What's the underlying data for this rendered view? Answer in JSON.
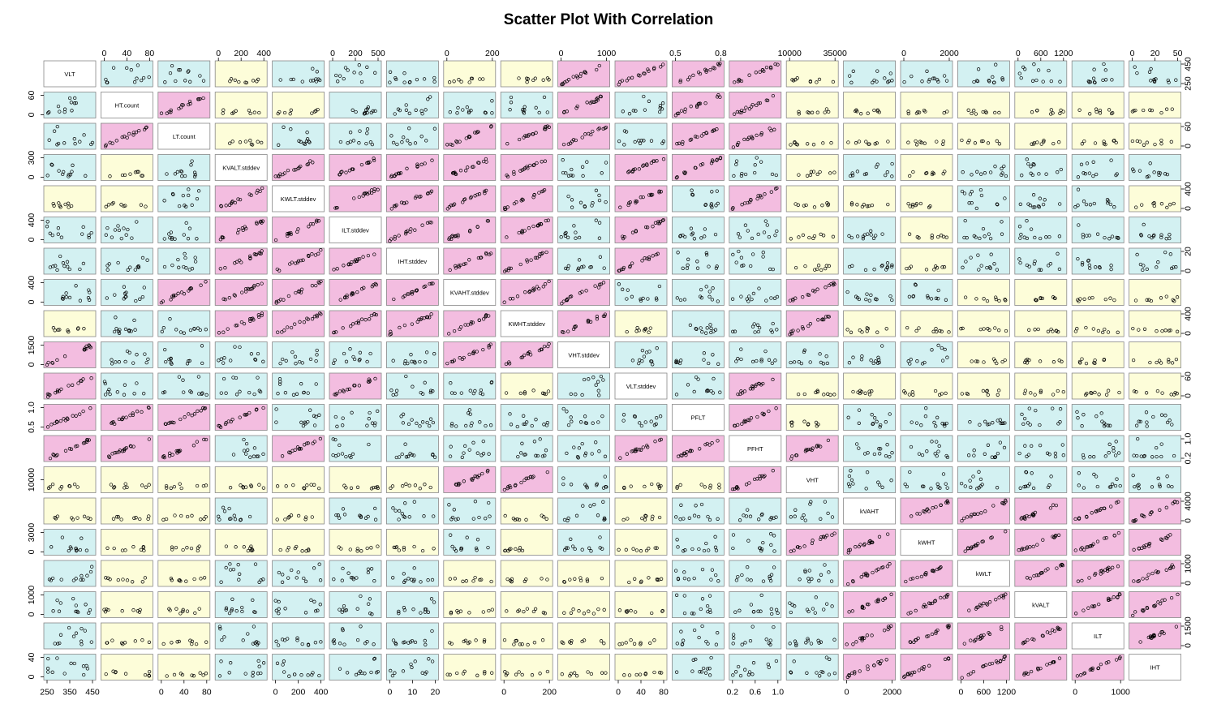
{
  "chart_data": {
    "type": "scatter",
    "title": "Scatter Plot With Correlation",
    "variables": [
      "VLT",
      "HT.count",
      "LT.count",
      "KVALT.stddev",
      "KWLT.stddev",
      "ILT.stddev",
      "IHT.stddev",
      "KVAHT.stddev",
      "KWHT.stddev",
      "VHT.stddev",
      "VLT.stddev",
      "PFLT",
      "PFHT",
      "VHT",
      "kVAHT",
      "kWHT",
      "kWLT",
      "kVALT",
      "ILT",
      "IHT"
    ],
    "panel_colors": {
      "high": "#f3bde0",
      "medium": "#d3f1f2",
      "low": "#fdfdd9"
    },
    "correlation_levels": [
      [
        0,
        1,
        1,
        2,
        1,
        1,
        1,
        2,
        2,
        0,
        0,
        0,
        0,
        2,
        1,
        1,
        1,
        1,
        1,
        1
      ],
      [
        1,
        0,
        0,
        2,
        2,
        1,
        1,
        1,
        1,
        0,
        1,
        0,
        0,
        2,
        2,
        2,
        2,
        2,
        2,
        2
      ],
      [
        1,
        0,
        0,
        2,
        1,
        1,
        1,
        0,
        0,
        0,
        1,
        0,
        0,
        2,
        2,
        2,
        2,
        2,
        2,
        2
      ],
      [
        1,
        2,
        1,
        0,
        0,
        0,
        0,
        0,
        0,
        1,
        0,
        0,
        1,
        2,
        1,
        2,
        1,
        1,
        1,
        1
      ],
      [
        2,
        2,
        1,
        0,
        0,
        0,
        0,
        0,
        0,
        1,
        0,
        1,
        0,
        2,
        2,
        2,
        1,
        1,
        1,
        2
      ],
      [
        1,
        1,
        1,
        0,
        0,
        0,
        0,
        0,
        0,
        1,
        0,
        1,
        1,
        2,
        1,
        2,
        1,
        1,
        1,
        1
      ],
      [
        1,
        1,
        1,
        0,
        0,
        0,
        0,
        0,
        0,
        1,
        0,
        1,
        1,
        2,
        1,
        2,
        1,
        1,
        1,
        1
      ],
      [
        1,
        1,
        0,
        0,
        0,
        0,
        0,
        0,
        0,
        0,
        1,
        1,
        1,
        0,
        1,
        1,
        2,
        2,
        2,
        2
      ],
      [
        2,
        1,
        1,
        0,
        0,
        0,
        0,
        0,
        0,
        0,
        2,
        1,
        1,
        0,
        2,
        2,
        2,
        2,
        2,
        2
      ],
      [
        0,
        1,
        1,
        1,
        1,
        1,
        1,
        0,
        0,
        0,
        1,
        1,
        1,
        1,
        1,
        1,
        2,
        2,
        2,
        2
      ],
      [
        0,
        1,
        1,
        1,
        1,
        0,
        1,
        1,
        2,
        1,
        0,
        1,
        0,
        2,
        2,
        2,
        2,
        2,
        2,
        2
      ],
      [
        0,
        0,
        0,
        0,
        1,
        1,
        1,
        1,
        1,
        1,
        1,
        0,
        0,
        2,
        1,
        1,
        1,
        1,
        1,
        1
      ],
      [
        0,
        0,
        0,
        1,
        0,
        1,
        1,
        1,
        1,
        1,
        0,
        0,
        0,
        0,
        1,
        1,
        1,
        1,
        1,
        1
      ],
      [
        2,
        2,
        2,
        2,
        2,
        2,
        2,
        0,
        0,
        1,
        2,
        2,
        0,
        0,
        1,
        1,
        1,
        1,
        1,
        1
      ],
      [
        2,
        2,
        2,
        1,
        2,
        1,
        1,
        1,
        2,
        1,
        2,
        1,
        1,
        1,
        0,
        0,
        0,
        0,
        0,
        0
      ],
      [
        1,
        2,
        2,
        2,
        2,
        2,
        2,
        1,
        2,
        1,
        2,
        1,
        1,
        0,
        0,
        0,
        0,
        0,
        0,
        0
      ],
      [
        1,
        2,
        2,
        1,
        1,
        1,
        1,
        2,
        2,
        2,
        2,
        1,
        1,
        1,
        0,
        0,
        0,
        0,
        0,
        0
      ],
      [
        1,
        2,
        2,
        1,
        1,
        1,
        1,
        2,
        2,
        2,
        2,
        1,
        1,
        1,
        0,
        0,
        0,
        0,
        0,
        0
      ],
      [
        1,
        2,
        2,
        1,
        1,
        1,
        1,
        2,
        2,
        2,
        2,
        1,
        1,
        1,
        0,
        0,
        0,
        0,
        0,
        0
      ],
      [
        1,
        2,
        2,
        1,
        1,
        1,
        1,
        2,
        2,
        2,
        2,
        1,
        1,
        1,
        0,
        0,
        0,
        0,
        0,
        0
      ]
    ],
    "top_axis_ticks": [
      {
        "col": 1,
        "labels": [
          "0",
          "40",
          "80"
        ]
      },
      {
        "col": 3,
        "labels": [
          "0",
          "200",
          "400"
        ]
      },
      {
        "col": 5,
        "labels": [
          "0",
          "200",
          "500"
        ]
      },
      {
        "col": 7,
        "labels": [
          "0",
          "200"
        ]
      },
      {
        "col": 9,
        "labels": [
          "0",
          "1000"
        ]
      },
      {
        "col": 11,
        "labels": [
          "0.5",
          "0.8"
        ]
      },
      {
        "col": 13,
        "labels": [
          "10000",
          "35000"
        ]
      },
      {
        "col": 15,
        "labels": [
          "0",
          "2000"
        ]
      },
      {
        "col": 17,
        "labels": [
          "0",
          "600",
          "1200"
        ]
      },
      {
        "col": 19,
        "labels": [
          "0",
          "20",
          "50"
        ]
      }
    ],
    "bottom_axis_ticks": [
      {
        "col": 0,
        "labels": [
          "250",
          "350",
          "450"
        ]
      },
      {
        "col": 2,
        "labels": [
          "0",
          "40",
          "80"
        ]
      },
      {
        "col": 4,
        "labels": [
          "0",
          "200",
          "400"
        ]
      },
      {
        "col": 6,
        "labels": [
          "0",
          "10",
          "20"
        ]
      },
      {
        "col": 8,
        "labels": [
          "0",
          "200"
        ]
      },
      {
        "col": 10,
        "labels": [
          "0",
          "40",
          "80"
        ]
      },
      {
        "col": 12,
        "labels": [
          "0.2",
          "0.6",
          "1.0"
        ]
      },
      {
        "col": 14,
        "labels": [
          "0",
          "2000"
        ]
      },
      {
        "col": 16,
        "labels": [
          "0",
          "600",
          "1200"
        ]
      },
      {
        "col": 18,
        "labels": [
          "0",
          "1000"
        ]
      }
    ],
    "left_axis_ticks": [
      {
        "row": 1,
        "labels": [
          "0",
          "60"
        ]
      },
      {
        "row": 3,
        "labels": [
          "0",
          "300"
        ]
      },
      {
        "row": 5,
        "labels": [
          "0",
          "400"
        ]
      },
      {
        "row": 7,
        "labels": [
          "0",
          "400"
        ]
      },
      {
        "row": 9,
        "labels": [
          "0",
          "1500"
        ]
      },
      {
        "row": 11,
        "labels": [
          "0.5",
          "1.0"
        ]
      },
      {
        "row": 13,
        "labels": [
          "10000"
        ]
      },
      {
        "row": 15,
        "labels": [
          "0",
          "3000"
        ]
      },
      {
        "row": 17,
        "labels": [
          "0",
          "1000"
        ]
      },
      {
        "row": 19,
        "labels": [
          "0",
          "40"
        ]
      }
    ],
    "right_axis_ticks": [
      {
        "row": 0,
        "labels": [
          "250",
          "450"
        ]
      },
      {
        "row": 2,
        "labels": [
          "0",
          "60"
        ]
      },
      {
        "row": 4,
        "labels": [
          "0",
          "400"
        ]
      },
      {
        "row": 6,
        "labels": [
          "0",
          "20"
        ]
      },
      {
        "row": 8,
        "labels": [
          "0",
          "400"
        ]
      },
      {
        "row": 10,
        "labels": [
          "0",
          "60"
        ]
      },
      {
        "row": 12,
        "labels": [
          "0.2",
          "1.0"
        ]
      },
      {
        "row": 14,
        "labels": [
          "0",
          "4000"
        ]
      },
      {
        "row": 16,
        "labels": [
          "0",
          "1000"
        ]
      },
      {
        "row": 18,
        "labels": [
          "0",
          "1500"
        ]
      }
    ]
  }
}
